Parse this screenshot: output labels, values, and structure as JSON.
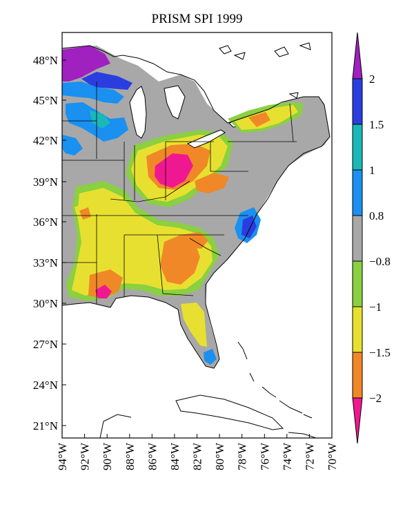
{
  "map": {
    "title": "PRISM SPI 1999",
    "lat_labels": [
      "48°N",
      "45°N",
      "42°N",
      "39°N",
      "36°N",
      "33°N",
      "30°N",
      "27°N",
      "24°N",
      "21°N"
    ],
    "lon_labels": [
      "94°W",
      "92°W",
      "90°W",
      "88°W",
      "86°W",
      "84°W",
      "82°W",
      "80°W",
      "78°W",
      "76°W",
      "74°W",
      "72°W",
      "70°W"
    ],
    "extent": {
      "lon_min": -94,
      "lon_max": -70,
      "lat_min": 20,
      "lat_max": 49
    }
  },
  "colorbar": {
    "labels": [
      "2",
      "1.5",
      "1",
      "0.8",
      "−0.8",
      "−1",
      "−1.5",
      "−2"
    ],
    "colors": {
      "above_2": "#a020c0",
      "1.5_to_2": "#2a3ee0",
      "1_to_1.5": "#1ab8b8",
      "0.8_to_1": "#1a90f0",
      "-0.8_to_0.8": "#a8a8a8",
      "-1_to_-0.8": "#8ad040",
      "-1.5_to_-1": "#e8e030",
      "-2_to_-1.5": "#f08828",
      "below_-2": "#f01890"
    }
  }
}
